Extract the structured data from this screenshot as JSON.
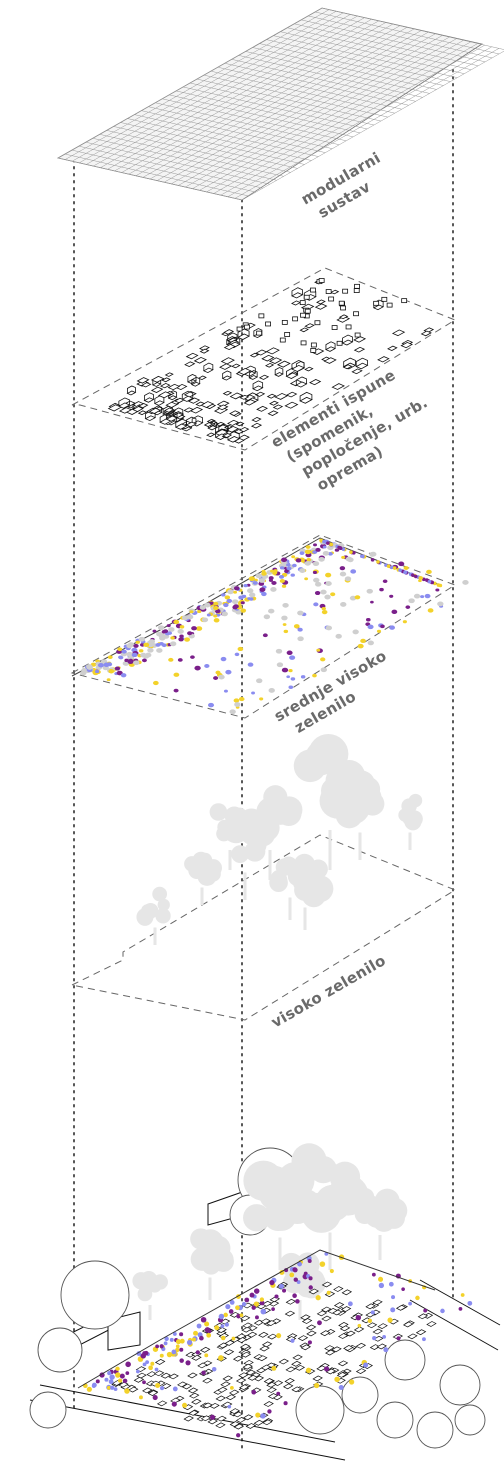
{
  "layers": [
    {
      "id": "modular-grid",
      "label_lines": [
        "modularni",
        "sustav"
      ]
    },
    {
      "id": "fill-elements",
      "label_lines": [
        "elementi ispune",
        "(spomenik,",
        "popločenje, urb.",
        "oprema)"
      ]
    },
    {
      "id": "medium-greenery",
      "label_lines": [
        "srednje visoko",
        "zelenilo"
      ]
    },
    {
      "id": "high-greenery",
      "label_lines": [
        "visoko zelenilo"
      ]
    }
  ],
  "colors": {
    "accent_purple": "#7a1f8a",
    "accent_blue": "#8a8cf0",
    "accent_yellow": "#f3d22a",
    "tree_gray": "#e6e6e6",
    "line_gray": "#666666"
  }
}
